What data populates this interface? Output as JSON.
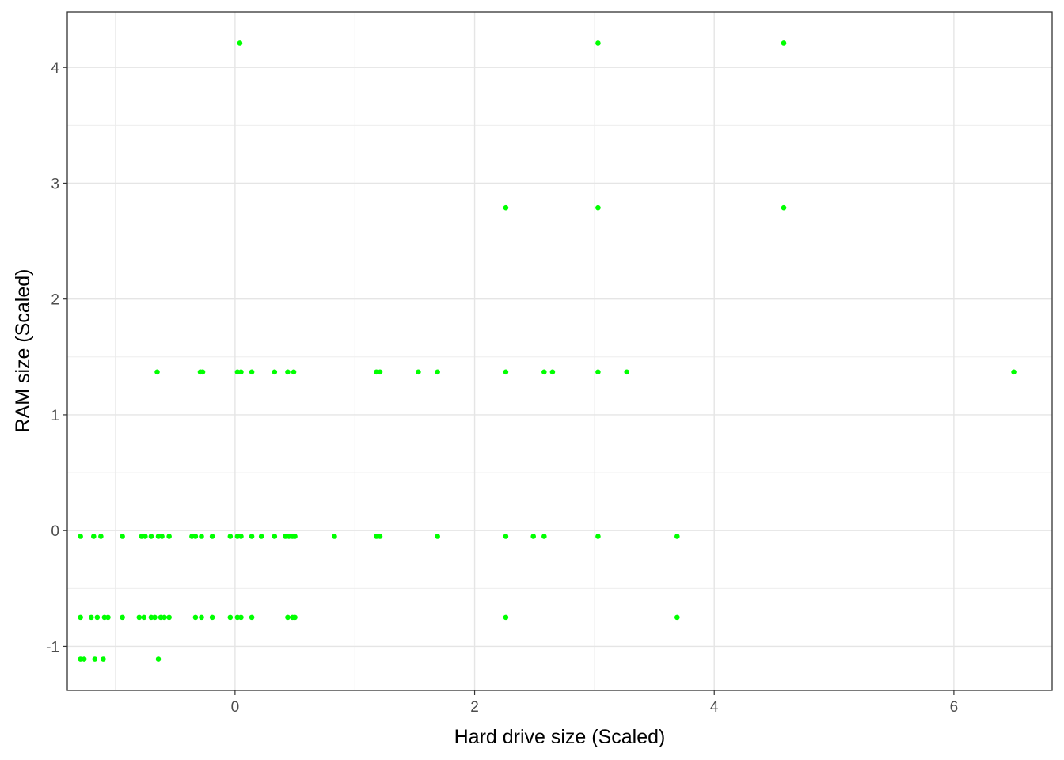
{
  "chart_data": {
    "type": "scatter",
    "title": "",
    "xlabel": "Hard drive size (Scaled)",
    "ylabel": "RAM size (Scaled)",
    "xlim": [
      -1.4,
      6.82
    ],
    "ylim": [
      -1.38,
      4.48
    ],
    "x_ticks": [
      0,
      2,
      4,
      6
    ],
    "y_ticks": [
      -1,
      0,
      1,
      2,
      3,
      4
    ],
    "x_tick_labels": [
      "0",
      "2",
      "4",
      "6"
    ],
    "y_tick_labels": [
      "-1",
      "0",
      "1",
      "2",
      "3",
      "4"
    ],
    "grid": true,
    "point_color": "#00ff00",
    "series": [
      {
        "points": [
          [
            0.04,
            4.21
          ],
          [
            3.03,
            4.21
          ],
          [
            4.58,
            4.21
          ],
          [
            2.26,
            2.79
          ],
          [
            3.03,
            2.79
          ],
          [
            4.58,
            2.79
          ],
          [
            -0.65,
            1.37
          ],
          [
            -0.29,
            1.37
          ],
          [
            -0.27,
            1.37
          ],
          [
            0.02,
            1.37
          ],
          [
            0.05,
            1.37
          ],
          [
            0.14,
            1.37
          ],
          [
            0.33,
            1.37
          ],
          [
            0.44,
            1.37
          ],
          [
            0.49,
            1.37
          ],
          [
            1.18,
            1.37
          ],
          [
            1.21,
            1.37
          ],
          [
            1.53,
            1.37
          ],
          [
            1.69,
            1.37
          ],
          [
            2.26,
            1.37
          ],
          [
            2.58,
            1.37
          ],
          [
            2.65,
            1.37
          ],
          [
            3.03,
            1.37
          ],
          [
            3.27,
            1.37
          ],
          [
            6.5,
            1.37
          ],
          [
            -1.29,
            -0.05
          ],
          [
            -1.18,
            -0.05
          ],
          [
            -1.12,
            -0.05
          ],
          [
            -0.94,
            -0.05
          ],
          [
            -0.78,
            -0.05
          ],
          [
            -0.75,
            -0.05
          ],
          [
            -0.7,
            -0.05
          ],
          [
            -0.64,
            -0.05
          ],
          [
            -0.61,
            -0.05
          ],
          [
            -0.55,
            -0.05
          ],
          [
            -0.36,
            -0.05
          ],
          [
            -0.33,
            -0.05
          ],
          [
            -0.28,
            -0.05
          ],
          [
            -0.19,
            -0.05
          ],
          [
            -0.04,
            -0.05
          ],
          [
            0.02,
            -0.05
          ],
          [
            0.05,
            -0.05
          ],
          [
            0.14,
            -0.05
          ],
          [
            0.22,
            -0.05
          ],
          [
            0.33,
            -0.05
          ],
          [
            0.42,
            -0.05
          ],
          [
            0.45,
            -0.05
          ],
          [
            0.48,
            -0.05
          ],
          [
            0.5,
            -0.05
          ],
          [
            0.83,
            -0.05
          ],
          [
            1.18,
            -0.05
          ],
          [
            1.21,
            -0.05
          ],
          [
            1.69,
            -0.05
          ],
          [
            2.26,
            -0.05
          ],
          [
            2.49,
            -0.05
          ],
          [
            2.58,
            -0.05
          ],
          [
            3.03,
            -0.05
          ],
          [
            3.69,
            -0.05
          ],
          [
            -1.29,
            -0.75
          ],
          [
            -1.2,
            -0.75
          ],
          [
            -1.15,
            -0.75
          ],
          [
            -1.09,
            -0.75
          ],
          [
            -1.06,
            -0.75
          ],
          [
            -0.94,
            -0.75
          ],
          [
            -0.8,
            -0.75
          ],
          [
            -0.76,
            -0.75
          ],
          [
            -0.7,
            -0.75
          ],
          [
            -0.67,
            -0.75
          ],
          [
            -0.62,
            -0.75
          ],
          [
            -0.59,
            -0.75
          ],
          [
            -0.55,
            -0.75
          ],
          [
            -0.33,
            -0.75
          ],
          [
            -0.28,
            -0.75
          ],
          [
            -0.19,
            -0.75
          ],
          [
            -0.04,
            -0.75
          ],
          [
            0.02,
            -0.75
          ],
          [
            0.05,
            -0.75
          ],
          [
            0.14,
            -0.75
          ],
          [
            0.44,
            -0.75
          ],
          [
            0.48,
            -0.75
          ],
          [
            0.5,
            -0.75
          ],
          [
            2.26,
            -0.75
          ],
          [
            3.69,
            -0.75
          ],
          [
            -1.29,
            -1.11
          ],
          [
            -1.26,
            -1.11
          ],
          [
            -1.17,
            -1.11
          ],
          [
            -1.1,
            -1.11
          ],
          [
            -0.64,
            -1.11
          ]
        ]
      }
    ]
  }
}
